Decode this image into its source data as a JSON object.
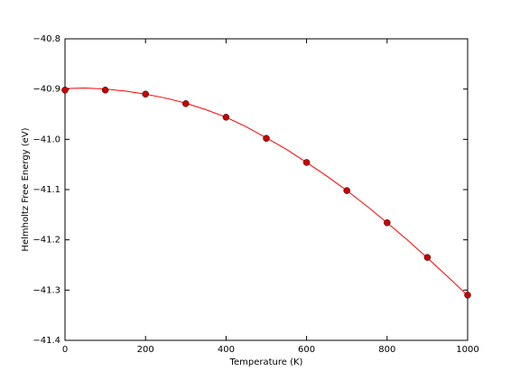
{
  "chart_data": {
    "type": "scatter",
    "x_label": "Temperature (K)",
    "y_label": "Helmholtz Free Energy (eV)",
    "xlim": [
      0,
      1000
    ],
    "ylim": [
      -41.4,
      -40.8
    ],
    "xticks": [
      0,
      200,
      400,
      600,
      800,
      1000
    ],
    "yticks": [
      {
        "value": -41.4,
        "label": "−41.4"
      },
      {
        "value": -41.3,
        "label": "−41.3"
      },
      {
        "value": -41.2,
        "label": "−41.2"
      },
      {
        "value": -41.1,
        "label": "−41.1"
      },
      {
        "value": -41.0,
        "label": "−41.0"
      },
      {
        "value": -40.9,
        "label": "−40.9"
      },
      {
        "value": -40.8,
        "label": "−40.8"
      }
    ],
    "series": [
      {
        "type": "scatter",
        "color": "#cc0000",
        "x": [
          0,
          100,
          200,
          300,
          400,
          500,
          600,
          700,
          800,
          900,
          1000
        ],
        "values": [
          -40.902,
          -40.902,
          -40.91,
          -40.929,
          -40.956,
          -40.998,
          -41.046,
          -41.102,
          -41.166,
          -41.235,
          -41.31
        ]
      },
      {
        "type": "line",
        "color": "#ff0000",
        "x": [
          0,
          50,
          100,
          150,
          200,
          250,
          300,
          350,
          400,
          450,
          500,
          550,
          600,
          650,
          700,
          750,
          800,
          850,
          900,
          950,
          1000
        ],
        "values": [
          -40.899,
          -40.898,
          -40.9,
          -40.904,
          -40.91,
          -40.918,
          -40.928,
          -40.941,
          -40.956,
          -40.975,
          -40.997,
          -41.02,
          -41.046,
          -41.073,
          -41.102,
          -41.133,
          -41.166,
          -41.2,
          -41.236,
          -41.273,
          -41.311
        ]
      }
    ]
  }
}
